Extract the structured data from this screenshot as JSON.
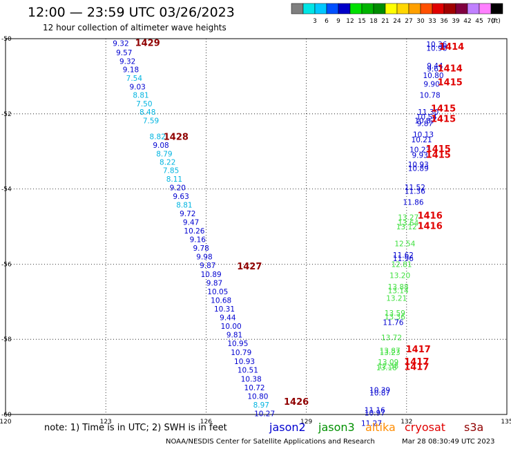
{
  "header": {
    "title": "12:00 — 23:59 UTC 03/26/2023",
    "subtitle": "12 hour collection of altimeter wave heights"
  },
  "legend": {
    "unit": "(ft)",
    "bins": [
      {
        "label": "",
        "color": "#7f7f7f"
      },
      {
        "label": "3",
        "color": "#00e5e5"
      },
      {
        "label": "6",
        "color": "#00c8ff"
      },
      {
        "label": "9",
        "color": "#0050ff"
      },
      {
        "label": "12",
        "color": "#0000c8"
      },
      {
        "label": "15",
        "color": "#00e000"
      },
      {
        "label": "18",
        "color": "#00b400"
      },
      {
        "label": "21",
        "color": "#008c00"
      },
      {
        "label": "24",
        "color": "#ffff00"
      },
      {
        "label": "27",
        "color": "#ffd700"
      },
      {
        "label": "30",
        "color": "#ffa000"
      },
      {
        "label": "33",
        "color": "#ff5000"
      },
      {
        "label": "36",
        "color": "#e00000"
      },
      {
        "label": "39",
        "color": "#a00000"
      },
      {
        "label": "42",
        "color": "#800040"
      },
      {
        "label": "45",
        "color": "#c080ff"
      },
      {
        "label": "70",
        "color": "#ff80ff"
      },
      {
        "label": "",
        "color": "#000000"
      }
    ]
  },
  "footer": {
    "note": "note:  1) Time is in UTC;  2) SWH is in feet",
    "satellites": [
      {
        "name": "jason2",
        "color": "#0000d0"
      },
      {
        "name": "jason3",
        "color": "#009000"
      },
      {
        "name": "altika",
        "color": "#ff8c00"
      },
      {
        "name": "cryosat",
        "color": "#e00000"
      },
      {
        "name": "s3a",
        "color": "#900000"
      }
    ],
    "credit": "NOAA/NESDIS Center for Satellite Applications and Research",
    "timestamp": "Mar 28 08:30:49 UTC 2023"
  },
  "chart_data": {
    "type": "scatter",
    "xlim": [
      120,
      135
    ],
    "ylim": [
      -60,
      -50
    ],
    "xticks": [
      "120",
      "123",
      "126",
      "129",
      "132",
      "135"
    ],
    "yticks": [
      "-50",
      "-52",
      "-54",
      "-56",
      "-58",
      "-60"
    ],
    "grid": true,
    "passes": [
      {
        "label": "1429",
        "color": "#900000",
        "x": 124.25,
        "y": -50.1
      },
      {
        "label": "1428",
        "color": "#900000",
        "x": 125.1,
        "y": -52.6
      },
      {
        "label": "1427",
        "color": "#900000",
        "x": 127.3,
        "y": -56.05
      },
      {
        "label": "1426",
        "color": "#900000",
        "x": 128.7,
        "y": -59.65
      },
      {
        "label": "1414",
        "color": "#e00000",
        "x": 133.35,
        "y": -50.2
      },
      {
        "label": "1414",
        "color": "#e00000",
        "x": 133.3,
        "y": -50.78
      },
      {
        "label": "1415",
        "color": "#e00000",
        "x": 133.3,
        "y": -51.15
      },
      {
        "label": "1415",
        "color": "#e00000",
        "x": 133.1,
        "y": -51.85
      },
      {
        "label": "1415",
        "color": "#e00000",
        "x": 133.1,
        "y": -52.12
      },
      {
        "label": "1415",
        "color": "#e00000",
        "x": 132.95,
        "y": -52.92
      },
      {
        "label": "1415",
        "color": "#e00000",
        "x": 132.95,
        "y": -53.08
      },
      {
        "label": "1416",
        "color": "#e00000",
        "x": 132.7,
        "y": -54.7
      },
      {
        "label": "1416",
        "color": "#e00000",
        "x": 132.7,
        "y": -54.97
      },
      {
        "label": "1417",
        "color": "#e00000",
        "x": 132.35,
        "y": -58.25
      },
      {
        "label": "1417",
        "color": "#e00000",
        "x": 132.3,
        "y": -58.58
      },
      {
        "label": "1417",
        "color": "#e00000",
        "x": 132.3,
        "y": -58.72
      }
    ],
    "points": [
      {
        "label": "9.32",
        "color": "#0000d0",
        "x": 123.45,
        "y": -50.12
      },
      {
        "label": "9.57",
        "color": "#0000d0",
        "x": 123.55,
        "y": -50.37
      },
      {
        "label": "9.32",
        "color": "#0000d0",
        "x": 123.65,
        "y": -50.6
      },
      {
        "label": "9.18",
        "color": "#0000d0",
        "x": 123.75,
        "y": -50.82
      },
      {
        "label": "7.54",
        "color": "#00b4e0",
        "x": 123.85,
        "y": -51.05
      },
      {
        "label": "9.03",
        "color": "#0000d0",
        "x": 123.95,
        "y": -51.28
      },
      {
        "label": "8.81",
        "color": "#00b4e0",
        "x": 124.05,
        "y": -51.5
      },
      {
        "label": "7.50",
        "color": "#00b4e0",
        "x": 124.15,
        "y": -51.73
      },
      {
        "label": "8.48",
        "color": "#00b4e0",
        "x": 124.25,
        "y": -51.95
      },
      {
        "label": "7.59",
        "color": "#00b4e0",
        "x": 124.35,
        "y": -52.18
      },
      {
        "label": "8.82",
        "color": "#00b4e0",
        "x": 124.55,
        "y": -52.6
      },
      {
        "label": "9.08",
        "color": "#0000d0",
        "x": 124.65,
        "y": -52.83
      },
      {
        "label": "8.79",
        "color": "#00b4e0",
        "x": 124.75,
        "y": -53.06
      },
      {
        "label": "8.22",
        "color": "#00b4e0",
        "x": 124.85,
        "y": -53.28
      },
      {
        "label": "7.85",
        "color": "#00b4e0",
        "x": 124.95,
        "y": -53.5
      },
      {
        "label": "8.11",
        "color": "#00b4e0",
        "x": 125.05,
        "y": -53.73
      },
      {
        "label": "9.20",
        "color": "#0000d0",
        "x": 125.15,
        "y": -53.96
      },
      {
        "label": "9.63",
        "color": "#0000d0",
        "x": 125.25,
        "y": -54.19
      },
      {
        "label": "8.81",
        "color": "#00b4e0",
        "x": 125.35,
        "y": -54.42
      },
      {
        "label": "9.72",
        "color": "#0000d0",
        "x": 125.45,
        "y": -54.65
      },
      {
        "label": "9.47",
        "color": "#0000d0",
        "x": 125.55,
        "y": -54.88
      },
      {
        "label": "10.26",
        "color": "#0000d0",
        "x": 125.65,
        "y": -55.11
      },
      {
        "label": "9.16",
        "color": "#0000d0",
        "x": 125.75,
        "y": -55.34
      },
      {
        "label": "9.78",
        "color": "#0000d0",
        "x": 125.85,
        "y": -55.57
      },
      {
        "label": "9.98",
        "color": "#0000d0",
        "x": 125.95,
        "y": -55.8
      },
      {
        "label": "9.87",
        "color": "#0000d0",
        "x": 126.05,
        "y": -56.03
      },
      {
        "label": "10.89",
        "color": "#0000d0",
        "x": 126.15,
        "y": -56.27
      },
      {
        "label": "9.87",
        "color": "#0000d0",
        "x": 126.25,
        "y": -56.5
      },
      {
        "label": "10.05",
        "color": "#0000d0",
        "x": 126.35,
        "y": -56.73
      },
      {
        "label": "10.68",
        "color": "#0000d0",
        "x": 126.45,
        "y": -56.96
      },
      {
        "label": "10.31",
        "color": "#0000d0",
        "x": 126.55,
        "y": -57.19
      },
      {
        "label": "9.44",
        "color": "#0000d0",
        "x": 126.65,
        "y": -57.42
      },
      {
        "label": "10.00",
        "color": "#0000d0",
        "x": 126.75,
        "y": -57.65
      },
      {
        "label": "9.81",
        "color": "#0000d0",
        "x": 126.85,
        "y": -57.88
      },
      {
        "label": "10.95",
        "color": "#0000d0",
        "x": 126.95,
        "y": -58.11
      },
      {
        "label": "10.79",
        "color": "#0000d0",
        "x": 127.05,
        "y": -58.35
      },
      {
        "label": "10.93",
        "color": "#0000d0",
        "x": 127.15,
        "y": -58.58
      },
      {
        "label": "10.51",
        "color": "#0000d0",
        "x": 127.25,
        "y": -58.81
      },
      {
        "label": "10.38",
        "color": "#0000d0",
        "x": 127.35,
        "y": -59.05
      },
      {
        "label": "10.72",
        "color": "#0000d0",
        "x": 127.45,
        "y": -59.28
      },
      {
        "label": "10.80",
        "color": "#0000d0",
        "x": 127.55,
        "y": -59.51
      },
      {
        "label": "8.97",
        "color": "#00b4e0",
        "x": 127.65,
        "y": -59.74
      },
      {
        "label": "10.27",
        "color": "#0000d0",
        "x": 127.75,
        "y": -59.97
      },
      {
        "label": "10.36",
        "color": "#0000d0",
        "x": 132.9,
        "y": -50.15
      },
      {
        "label": "10.98",
        "color": "#0000d0",
        "x": 132.9,
        "y": -50.25
      },
      {
        "label": "9.44",
        "color": "#0000d0",
        "x": 132.85,
        "y": -50.72
      },
      {
        "label": "9.62",
        "color": "#0000d0",
        "x": 132.85,
        "y": -50.8
      },
      {
        "label": "10.80",
        "color": "#0000d0",
        "x": 132.8,
        "y": -50.97
      },
      {
        "label": "9.90",
        "color": "#0000d0",
        "x": 132.75,
        "y": -51.2
      },
      {
        "label": "10.78",
        "color": "#0000d0",
        "x": 132.7,
        "y": -51.5
      },
      {
        "label": "11.30",
        "color": "#0000d0",
        "x": 132.65,
        "y": -51.95
      },
      {
        "label": "10.54",
        "color": "#0000d0",
        "x": 132.6,
        "y": -52.08
      },
      {
        "label": "10.87",
        "color": "#0000d0",
        "x": 132.55,
        "y": -52.18
      },
      {
        "label": "9.87",
        "color": "#0000d0",
        "x": 132.55,
        "y": -52.25
      },
      {
        "label": "10.13",
        "color": "#0000d0",
        "x": 132.5,
        "y": -52.55
      },
      {
        "label": "10.21",
        "color": "#0000d0",
        "x": 132.45,
        "y": -52.68
      },
      {
        "label": "10.23",
        "color": "#0000d0",
        "x": 132.4,
        "y": -52.95
      },
      {
        "label": "9.93",
        "color": "#0000d0",
        "x": 132.4,
        "y": -53.1
      },
      {
        "label": "10.93",
        "color": "#0000d0",
        "x": 132.35,
        "y": -53.35
      },
      {
        "label": "10.89",
        "color": "#0000d0",
        "x": 132.35,
        "y": -53.45
      },
      {
        "label": "11.52",
        "color": "#0000d0",
        "x": 132.25,
        "y": -53.95
      },
      {
        "label": "11.36",
        "color": "#0000d0",
        "x": 132.25,
        "y": -54.05
      },
      {
        "label": "11.86",
        "color": "#0000d0",
        "x": 132.2,
        "y": -54.35
      },
      {
        "label": "13.27",
        "color": "#40e040",
        "x": 132.05,
        "y": -54.75
      },
      {
        "label": "13.64",
        "color": "#40e040",
        "x": 132.05,
        "y": -54.9
      },
      {
        "label": "13.12",
        "color": "#40e040",
        "x": 132.0,
        "y": -55.0
      },
      {
        "label": "12.54",
        "color": "#40e040",
        "x": 131.95,
        "y": -55.45
      },
      {
        "label": "11.62",
        "color": "#0000d0",
        "x": 131.9,
        "y": -55.75
      },
      {
        "label": "11.96",
        "color": "#0000d0",
        "x": 131.9,
        "y": -55.85
      },
      {
        "label": "12.81",
        "color": "#40e040",
        "x": 131.85,
        "y": -56.0
      },
      {
        "label": "13.20",
        "color": "#40e040",
        "x": 131.8,
        "y": -56.3
      },
      {
        "label": "13.88",
        "color": "#40e040",
        "x": 131.75,
        "y": -56.6
      },
      {
        "label": "13.14",
        "color": "#40e040",
        "x": 131.75,
        "y": -56.7
      },
      {
        "label": "13.21",
        "color": "#40e040",
        "x": 131.7,
        "y": -56.9
      },
      {
        "label": "13.59",
        "color": "#40e040",
        "x": 131.65,
        "y": -57.3
      },
      {
        "label": "13.36",
        "color": "#40e040",
        "x": 131.65,
        "y": -57.4
      },
      {
        "label": "11.76",
        "color": "#0000d0",
        "x": 131.6,
        "y": -57.55
      },
      {
        "label": "13.72",
        "color": "#40e040",
        "x": 131.55,
        "y": -57.95
      },
      {
        "label": "13.87",
        "color": "#40e040",
        "x": 131.5,
        "y": -58.3
      },
      {
        "label": "13.23",
        "color": "#40e040",
        "x": 131.5,
        "y": -58.35
      },
      {
        "label": "13.09",
        "color": "#40e040",
        "x": 131.45,
        "y": -58.6
      },
      {
        "label": "12.38",
        "color": "#40e040",
        "x": 131.45,
        "y": -58.7
      },
      {
        "label": "13.18",
        "color": "#40e040",
        "x": 131.4,
        "y": -58.75
      },
      {
        "label": "10.39",
        "color": "#0000d0",
        "x": 131.2,
        "y": -59.35
      },
      {
        "label": "10.87",
        "color": "#0000d0",
        "x": 131.2,
        "y": -59.42
      },
      {
        "label": "11.16",
        "color": "#0000d0",
        "x": 131.05,
        "y": -59.88
      },
      {
        "label": "10.97",
        "color": "#0000d0",
        "x": 131.05,
        "y": -59.95
      },
      {
        "label": "11.27",
        "color": "#0000d0",
        "x": 130.95,
        "y": -60.23
      }
    ]
  }
}
